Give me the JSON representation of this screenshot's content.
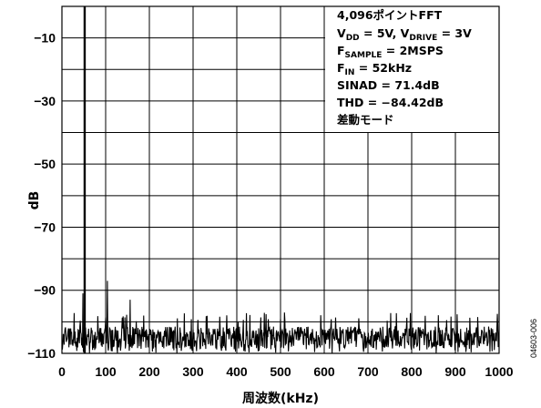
{
  "figure_id": "04603-006",
  "chart_data": {
    "type": "line",
    "title": "",
    "xlabel": "周波数(kHz)",
    "ylabel": "dB",
    "xlim": [
      0,
      1000
    ],
    "ylim": [
      -110,
      0
    ],
    "x_ticks": [
      0,
      100,
      200,
      300,
      400,
      500,
      600,
      700,
      800,
      900,
      1000
    ],
    "y_ticks": [
      -10,
      -30,
      -50,
      -70,
      -90,
      -110
    ],
    "grid": true,
    "annotation": {
      "line1": "4,096ポイントFFT",
      "line2": {
        "a": "V",
        "a_sub": "DD",
        "b": " = 5V, V",
        "b_sub": "DRIVE",
        "c": " = 3V"
      },
      "line3": {
        "a": "F",
        "a_sub": "SAMPLE",
        "b": " = 2MSPS"
      },
      "line4": {
        "a": "F",
        "a_sub": "IN",
        "b": " = 52kHz"
      },
      "line5": "SINAD = 71.4dB",
      "line6": "THD = −84.42dB",
      "line7": "差動モード"
    },
    "series": [
      {
        "noise_floor_db": -105,
        "noise_range_db": [
          -110,
          -97
        ],
        "peaks": [
          {
            "x": 52,
            "y": 0
          },
          {
            "x": 48,
            "y": -91
          },
          {
            "x": 104,
            "y": -87
          },
          {
            "x": 156,
            "y": -93
          }
        ]
      }
    ]
  }
}
